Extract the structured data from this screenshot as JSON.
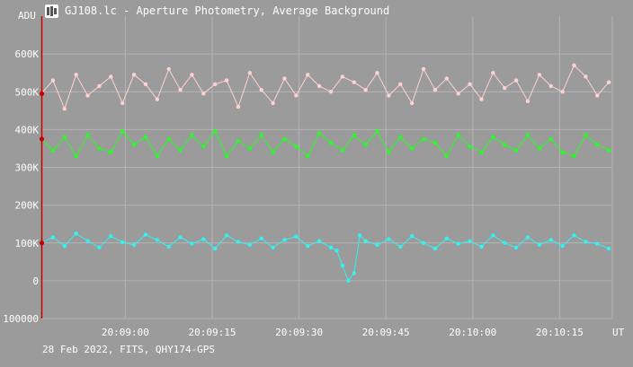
{
  "window": {
    "title": "GJ108.lc - Aperture Photometry, Average Background",
    "icon": "telescope-app-icon"
  },
  "footer": {
    "text": "28 Feb 2022, FITS, QHY174-GPS"
  },
  "colors": {
    "background": "#9b9b9b",
    "grid": "#b4b4b4",
    "cursor": "#cc0000",
    "series_pink": "#ffd2d2",
    "series_green": "#22ff22",
    "series_cyan": "#33f2f2"
  },
  "chart_data": {
    "type": "line",
    "title": "GJ108.lc - Aperture Photometry, Average Background",
    "ylabel": "ADU",
    "xlabel": "UT",
    "ylim": [
      -100000,
      700000
    ],
    "xlim": [
      0,
      98.6
    ],
    "x_ticks": [
      {
        "t": 14.5,
        "label": "20:09:00"
      },
      {
        "t": 29.5,
        "label": "20:09:15"
      },
      {
        "t": 44.5,
        "label": "20:09:30"
      },
      {
        "t": 59.5,
        "label": "20:09:45"
      },
      {
        "t": 74.5,
        "label": "20:10:00"
      },
      {
        "t": 89.5,
        "label": "20:10:15"
      }
    ],
    "y_ticks": [
      {
        "v": -100000,
        "label": "100000"
      },
      {
        "v": 0,
        "label": "0"
      },
      {
        "v": 100000,
        "label": "100K"
      },
      {
        "v": 200000,
        "label": "200K"
      },
      {
        "v": 300000,
        "label": "300K"
      },
      {
        "v": 400000,
        "label": "400K"
      },
      {
        "v": 500000,
        "label": "500K"
      },
      {
        "v": 600000,
        "label": "600K"
      }
    ],
    "grid": true,
    "cursor_t": 0,
    "series": [
      {
        "color": "#ffd2d2",
        "x": [
          0,
          2,
          4,
          6,
          8,
          10,
          12,
          14,
          16,
          18,
          20,
          22,
          24,
          26,
          28,
          30,
          32,
          34,
          36,
          38,
          40,
          42,
          44,
          46,
          48,
          50,
          52,
          54,
          56,
          58,
          60,
          62,
          64,
          66,
          68,
          70,
          72,
          74,
          76,
          78,
          80,
          82,
          84,
          86,
          88,
          90,
          92,
          94,
          96,
          98
        ],
        "values": [
          495000,
          530000,
          455000,
          545000,
          490000,
          515000,
          540000,
          470000,
          545000,
          520000,
          480000,
          560000,
          505000,
          545000,
          495000,
          520000,
          530000,
          460000,
          550000,
          505000,
          470000,
          535000,
          490000,
          545000,
          515000,
          500000,
          540000,
          525000,
          505000,
          550000,
          490000,
          520000,
          470000,
          560000,
          505000,
          535000,
          495000,
          520000,
          480000,
          550000,
          510000,
          530000,
          475000,
          545000,
          515000,
          500000,
          570000,
          540000,
          490000,
          525000
        ]
      },
      {
        "color": "#22ff22",
        "x": [
          0,
          2,
          4,
          6,
          8,
          10,
          12,
          14,
          16,
          18,
          20,
          22,
          24,
          26,
          28,
          30,
          32,
          34,
          36,
          38,
          40,
          42,
          44,
          46,
          48,
          50,
          52,
          54,
          56,
          58,
          60,
          62,
          64,
          66,
          68,
          70,
          72,
          74,
          76,
          78,
          80,
          82,
          84,
          86,
          88,
          90,
          92,
          94,
          96,
          98
        ],
        "values": [
          375000,
          345000,
          380000,
          330000,
          385000,
          350000,
          340000,
          395000,
          360000,
          380000,
          330000,
          375000,
          345000,
          385000,
          355000,
          395000,
          330000,
          370000,
          350000,
          385000,
          340000,
          375000,
          355000,
          330000,
          390000,
          365000,
          345000,
          385000,
          360000,
          395000,
          340000,
          380000,
          350000,
          375000,
          365000,
          330000,
          385000,
          355000,
          340000,
          380000,
          360000,
          345000,
          385000,
          350000,
          375000,
          340000,
          330000,
          385000,
          360000,
          345000
        ]
      },
      {
        "color": "#33f2f2",
        "x": [
          0,
          2,
          4,
          6,
          8,
          10,
          12,
          14,
          16,
          18,
          20,
          22,
          24,
          26,
          28,
          30,
          32,
          34,
          36,
          38,
          40,
          42,
          44,
          46,
          48,
          50,
          51,
          52,
          53,
          54,
          55,
          56,
          58,
          60,
          62,
          64,
          66,
          68,
          70,
          72,
          74,
          76,
          78,
          80,
          82,
          84,
          86,
          88,
          90,
          92,
          94,
          96,
          98
        ],
        "values": [
          100000,
          115000,
          92000,
          125000,
          105000,
          88000,
          118000,
          102000,
          95000,
          122000,
          108000,
          90000,
          115000,
          98000,
          110000,
          85000,
          120000,
          103000,
          95000,
          112000,
          88000,
          108000,
          117000,
          92000,
          105000,
          88000,
          80000,
          40000,
          0,
          20000,
          120000,
          105000,
          95000,
          110000,
          90000,
          118000,
          100000,
          85000,
          112000,
          98000,
          105000,
          90000,
          120000,
          100000,
          88000,
          115000,
          95000,
          108000,
          92000,
          120000,
          103000,
          98000,
          85000
        ]
      }
    ]
  }
}
